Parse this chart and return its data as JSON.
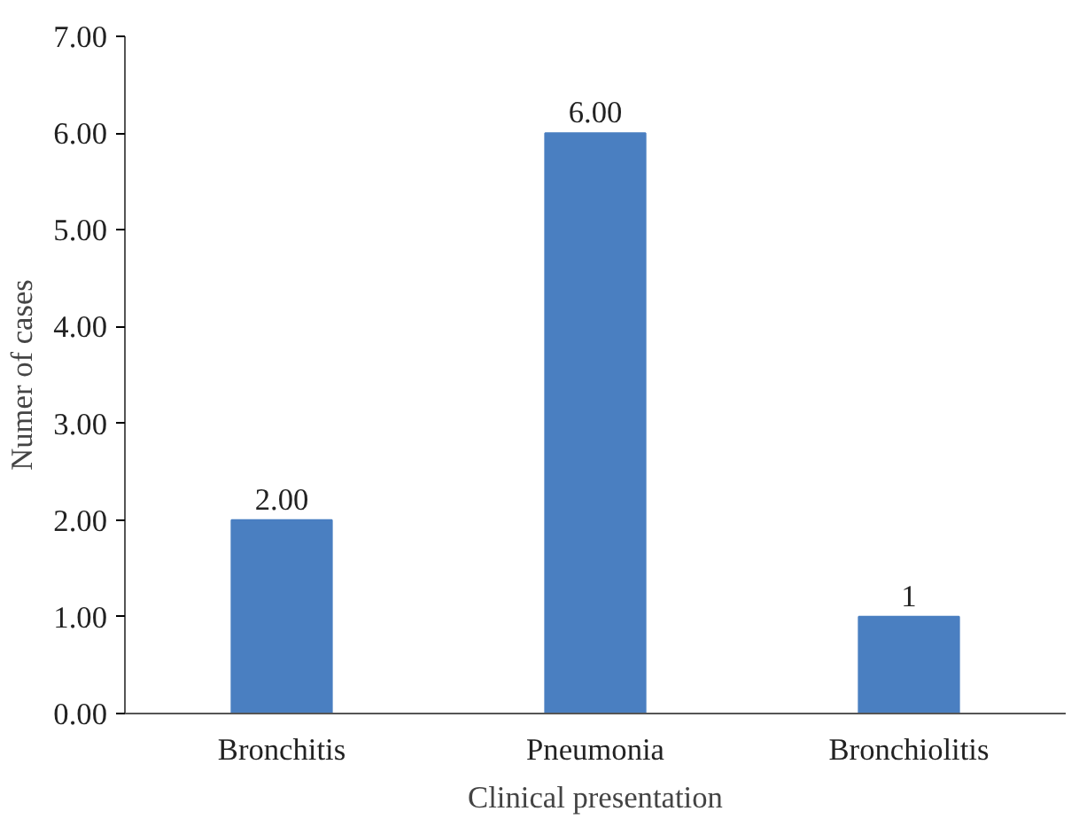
{
  "chart_data": {
    "type": "bar",
    "xlabel": "Clinical presentation",
    "ylabel": "Numer of cases",
    "categories": [
      "Bronchitis",
      "Pneumonia",
      "Bronchiolitis"
    ],
    "values": [
      2,
      6,
      1
    ],
    "color": "#4a7fc1",
    "value_labels": [
      "2.00",
      "6.00",
      "1"
    ],
    "ylim": [
      0,
      7
    ],
    "yticks": [
      {
        "value": 0,
        "label": "0.00"
      },
      {
        "value": 1,
        "label": "1.00"
      },
      {
        "value": 2,
        "label": "2.00"
      },
      {
        "value": 3,
        "label": "3.00"
      },
      {
        "value": 4,
        "label": "4.00"
      },
      {
        "value": 5,
        "label": "5.00"
      },
      {
        "value": 6,
        "label": "6.00"
      },
      {
        "value": 7,
        "label": "7.00"
      }
    ],
    "grid": false
  }
}
